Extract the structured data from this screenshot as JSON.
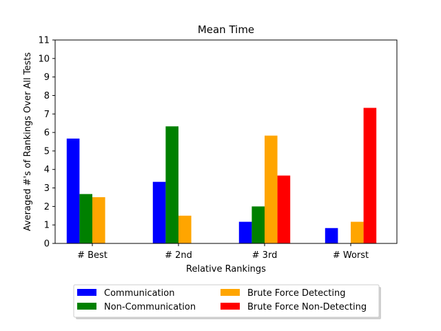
{
  "chart_data": {
    "type": "bar",
    "title": "Mean Time",
    "xlabel": "Relative Rankings",
    "ylabel": "Averaged #'s of Rankings Over All Tests",
    "categories": [
      "# Best",
      "# 2nd",
      "# 3rd",
      "# Worst"
    ],
    "ylim": [
      0,
      11
    ],
    "yticks": [
      0,
      1,
      2,
      3,
      4,
      5,
      6,
      7,
      8,
      9,
      10,
      11
    ],
    "grid": false,
    "legend_placement": "bottom-center",
    "series": [
      {
        "name": "Communication",
        "color": "#0000ff",
        "values": [
          5.67,
          3.33,
          1.17,
          0.83
        ]
      },
      {
        "name": "Non-Communication",
        "color": "#008000",
        "values": [
          2.67,
          6.33,
          2.0,
          0.0
        ]
      },
      {
        "name": "Brute Force Detecting",
        "color": "#ffa500",
        "values": [
          2.5,
          1.5,
          5.83,
          1.17
        ]
      },
      {
        "name": "Brute Force Non-Detecting",
        "color": "#ff0000",
        "values": [
          0.0,
          0.0,
          3.67,
          7.33
        ]
      }
    ]
  }
}
